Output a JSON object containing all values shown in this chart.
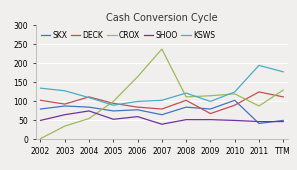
{
  "title": "Cash Conversion Cycle",
  "x_labels": [
    "2002",
    "2003",
    "2004",
    "2005",
    "2006",
    "2007",
    "2008",
    "2009",
    "2010",
    "2011",
    "TTM"
  ],
  "series": {
    "SKX": [
      80,
      88,
      85,
      75,
      78,
      65,
      85,
      80,
      103,
      42,
      50
    ],
    "DECK": [
      103,
      93,
      112,
      95,
      85,
      80,
      103,
      68,
      90,
      125,
      112
    ],
    "CROX": [
      2,
      35,
      55,
      100,
      165,
      238,
      112,
      115,
      120,
      88,
      130
    ],
    "SHOO": [
      50,
      65,
      75,
      53,
      60,
      40,
      52,
      52,
      50,
      47,
      47
    ],
    "KSWS": [
      135,
      128,
      110,
      90,
      100,
      103,
      122,
      100,
      125,
      195,
      178
    ]
  },
  "colors": {
    "SKX": "#4472C4",
    "DECK": "#C0504D",
    "CROX": "#9BBB59",
    "SHOO": "#7030A0",
    "KSWS": "#4BACC6"
  },
  "ylim": [
    0,
    300
  ],
  "yticks": [
    0,
    50,
    100,
    150,
    200,
    250,
    300
  ],
  "bg_color": "#F0EFED",
  "plot_bg": "#F0EFED",
  "grid_color": "#FFFFFF",
  "title_fontsize": 7,
  "legend_fontsize": 5.5,
  "tick_fontsize": 5.5
}
